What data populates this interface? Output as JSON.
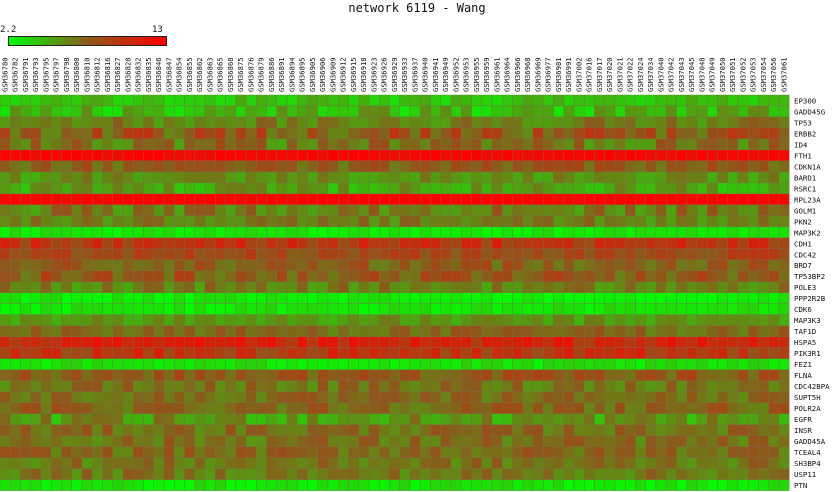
{
  "chart_data": {
    "type": "heatmap",
    "title": "network 6119 - Wang",
    "color_scale": {
      "min_label": "2.2",
      "max_label": "13",
      "min_value": 2.2,
      "max_value": 13,
      "low_color": "#00ff00",
      "mid_color": "#8b5a1a",
      "high_color": "#ff0000"
    },
    "columns": [
      "GSM36780",
      "GSM36782",
      "GSM36791",
      "GSM36793",
      "GSM36795",
      "GSM36797",
      "GSM36798",
      "GSM36800",
      "GSM36810",
      "GSM36812",
      "GSM36816",
      "GSM36827",
      "GSM36828",
      "GSM36832",
      "GSM36835",
      "GSM36846",
      "GSM36847",
      "GSM36854",
      "GSM36855",
      "GSM36862",
      "GSM36863",
      "GSM36865",
      "GSM36868",
      "GSM36875",
      "GSM36876",
      "GSM36879",
      "GSM36886",
      "GSM36891",
      "GSM36894",
      "GSM36895",
      "GSM36905",
      "GSM36906",
      "GSM36909",
      "GSM36912",
      "GSM36915",
      "GSM36918",
      "GSM36923",
      "GSM36926",
      "GSM36929",
      "GSM36933",
      "GSM36937",
      "GSM36940",
      "GSM36941",
      "GSM36949",
      "GSM36952",
      "GSM36953",
      "GSM36955",
      "GSM36959",
      "GSM36961",
      "GSM36964",
      "GSM36966",
      "GSM36968",
      "GSM36969",
      "GSM36977",
      "GSM36981",
      "GSM36991",
      "GSM37002",
      "GSM37016",
      "GSM37017",
      "GSM37020",
      "GSM37021",
      "GSM37022",
      "GSM37024",
      "GSM37034",
      "GSM37040",
      "GSM37042",
      "GSM37043",
      "GSM37045",
      "GSM37048",
      "GSM37049",
      "GSM37050",
      "GSM37051",
      "GSM37052",
      "GSM37053",
      "GSM37054",
      "GSM37056",
      "GSM37061"
    ],
    "rows": [
      {
        "gene": "EP300",
        "base": 4.2,
        "var": 1.0
      },
      {
        "gene": "GADD45G",
        "base": 4.5,
        "var": 1.6
      },
      {
        "gene": "TP53",
        "base": 6.4,
        "var": 1.3
      },
      {
        "gene": "ERBB2",
        "base": 8.0,
        "var": 2.2
      },
      {
        "gene": "ID4",
        "base": 6.8,
        "var": 1.8
      },
      {
        "gene": "FTH1",
        "base": 12.6,
        "var": 0.4
      },
      {
        "gene": "CDKN1A",
        "base": 7.6,
        "var": 1.3
      },
      {
        "gene": "BARD1",
        "base": 5.8,
        "var": 1.1
      },
      {
        "gene": "RSRC1",
        "base": 5.2,
        "var": 1.4
      },
      {
        "gene": "RPL23A",
        "base": 12.8,
        "var": 0.3
      },
      {
        "gene": "GOLM1",
        "base": 6.6,
        "var": 1.6
      },
      {
        "gene": "PKN2",
        "base": 6.3,
        "var": 1.2
      },
      {
        "gene": "MAP3K2",
        "base": 3.0,
        "var": 0.6
      },
      {
        "gene": "CDH1",
        "base": 9.8,
        "var": 1.5
      },
      {
        "gene": "CDC42",
        "base": 8.6,
        "var": 1.2
      },
      {
        "gene": "BRD7",
        "base": 7.6,
        "var": 1.3
      },
      {
        "gene": "TP53BP2",
        "base": 7.9,
        "var": 1.6
      },
      {
        "gene": "POLE3",
        "base": 6.3,
        "var": 1.3
      },
      {
        "gene": "PPP2R2B",
        "base": 2.8,
        "var": 0.6
      },
      {
        "gene": "CDK6",
        "base": 3.0,
        "var": 0.7
      },
      {
        "gene": "MAP3K3",
        "base": 5.6,
        "var": 1.0
      },
      {
        "gene": "TAF1D",
        "base": 7.1,
        "var": 1.1
      },
      {
        "gene": "HSPA5",
        "base": 10.6,
        "var": 1.5
      },
      {
        "gene": "PIK3R1",
        "base": 9.7,
        "var": 1.6
      },
      {
        "gene": "FEZ1",
        "base": 3.1,
        "var": 0.7
      },
      {
        "gene": "FLNA",
        "base": 7.9,
        "var": 1.2
      },
      {
        "gene": "CDC42BPA",
        "base": 6.8,
        "var": 1.3
      },
      {
        "gene": "SUPT5H",
        "base": 7.0,
        "var": 1.1
      },
      {
        "gene": "POLR2A",
        "base": 7.4,
        "var": 1.3
      },
      {
        "gene": "EGFR",
        "base": 5.6,
        "var": 1.6
      },
      {
        "gene": "INSR",
        "base": 7.0,
        "var": 1.2
      },
      {
        "gene": "GADD45A",
        "base": 6.9,
        "var": 1.3
      },
      {
        "gene": "TCEAL4",
        "base": 7.2,
        "var": 1.2
      },
      {
        "gene": "SH3BP4",
        "base": 6.7,
        "var": 1.2
      },
      {
        "gene": "USP11",
        "base": 6.6,
        "var": 1.1
      },
      {
        "gene": "PTN",
        "base": 3.0,
        "var": 0.7
      }
    ]
  }
}
